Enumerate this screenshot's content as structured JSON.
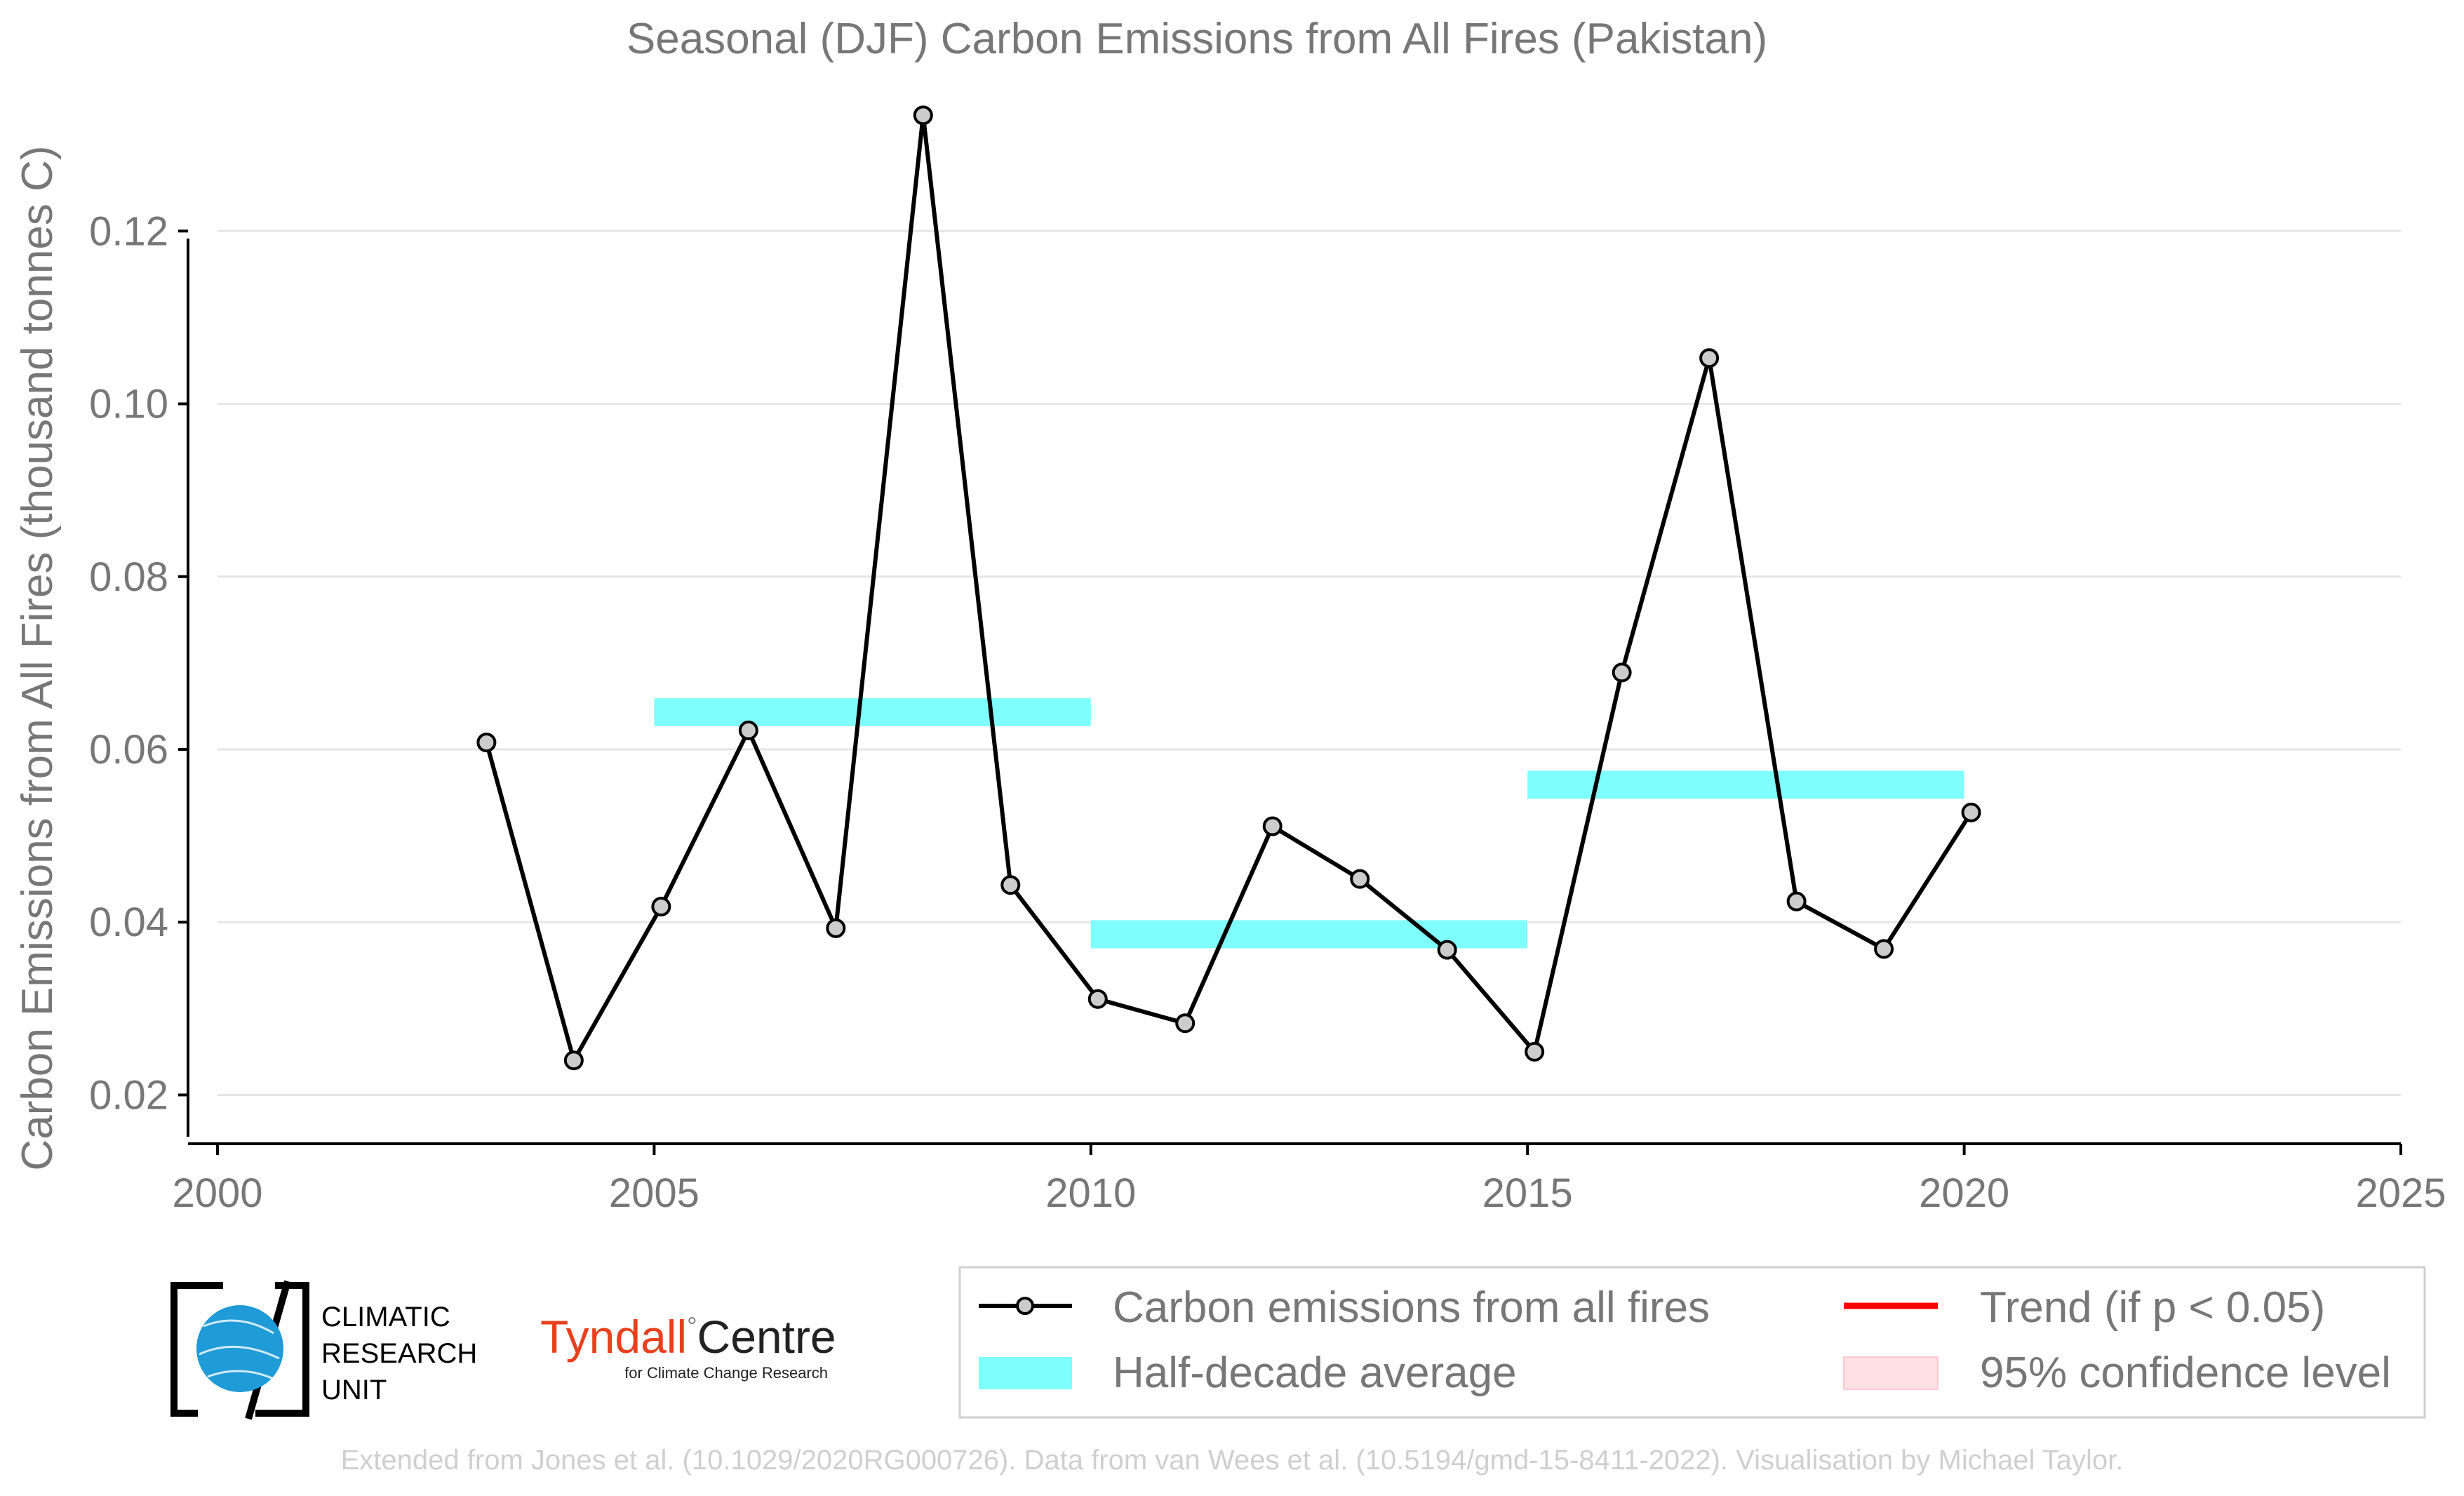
{
  "chart_data": {
    "type": "line",
    "title": "Seasonal (DJF) Carbon Emissions from All Fires (Pakistan)",
    "xlabel": "",
    "ylabel": "Carbon Emissions from All Fires (thousand tonnes C)",
    "xlim": [
      2000,
      2025
    ],
    "ylim": [
      0.015,
      0.137
    ],
    "xticks": [
      2000,
      2005,
      2010,
      2015,
      2020,
      2025
    ],
    "yticks": [
      0.02,
      0.04,
      0.06,
      0.08,
      0.1,
      0.12
    ],
    "ytick_labels": [
      "0.02",
      "0.04",
      "0.06",
      "0.08",
      "0.10",
      "0.12"
    ],
    "grid": "horizontal",
    "legend_position": "bottom-right",
    "series": [
      {
        "name": "Carbon emissions from all fires",
        "color": "#000000",
        "marker_fill": "#cccccc",
        "x": [
          2003,
          2004,
          2005,
          2006,
          2007,
          2008,
          2009,
          2010,
          2011,
          2012,
          2013,
          2014,
          2015,
          2016,
          2017,
          2018,
          2019,
          2020
        ],
        "y": [
          0.0608,
          0.024,
          0.0418,
          0.0622,
          0.0393,
          0.1334,
          0.0443,
          0.0311,
          0.0283,
          0.0511,
          0.045,
          0.0368,
          0.025,
          0.0689,
          0.1053,
          0.0424,
          0.0369,
          0.0527
        ]
      }
    ],
    "half_decade_average": {
      "name": "Half-decade average",
      "color": "#80ffff",
      "segments": [
        {
          "x0": 2005,
          "x1": 2010,
          "y": 0.0643
        },
        {
          "x0": 2010,
          "x1": 2015,
          "y": 0.0386
        },
        {
          "x0": 2015,
          "x1": 2020,
          "y": 0.0559
        }
      ]
    },
    "legend": [
      {
        "label": "Carbon emissions from all fires",
        "kind": "line-marker",
        "color": "#000000"
      },
      {
        "label": "Trend (if p < 0.05)",
        "kind": "line",
        "color": "#ff0000"
      },
      {
        "label": "Half-decade average",
        "kind": "patch",
        "color": "#80ffff"
      },
      {
        "label": "95% confidence level",
        "kind": "patch",
        "color": "#ffe0e4"
      }
    ]
  },
  "logos": {
    "cru": {
      "line1": "CLIMATIC",
      "line2": "RESEARCH",
      "line3": "UNIT"
    },
    "tyndall": {
      "name_red": "Tyndall",
      "degree": "°",
      "name_black": "Centre",
      "subtitle": "for Climate Change Research"
    }
  },
  "credits": "Extended from Jones et al. (10.1029/2020RG000726). Data from van Wees et al. (10.5194/gmd-15-8411-2022). Visualisation by Michael Taylor."
}
